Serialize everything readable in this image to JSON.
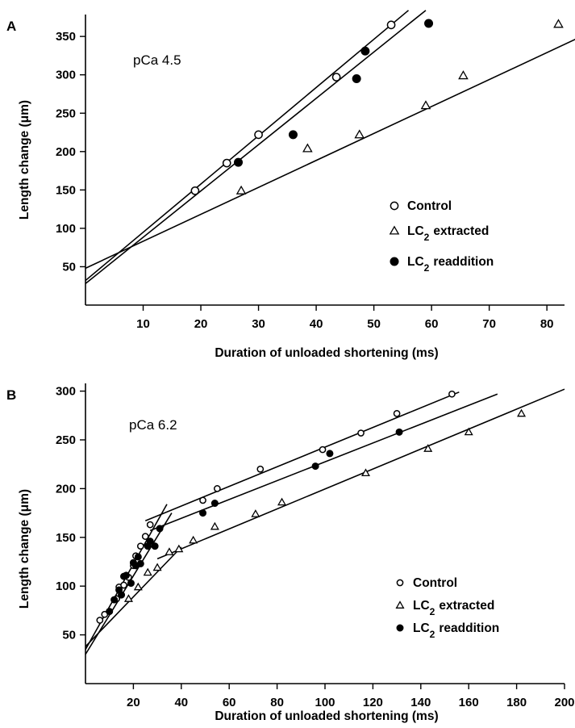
{
  "chart_data": [
    {
      "panel": "A",
      "type": "scatter",
      "annotation": "pCa 4.5",
      "xlabel": "Duration of unloaded shortening (ms)",
      "ylabel": "Length change (μm)",
      "xlim": [
        0,
        86
      ],
      "ylim": [
        0,
        375
      ],
      "xticks": [
        10,
        20,
        30,
        40,
        50,
        60,
        70,
        80
      ],
      "yticks": [
        50,
        100,
        150,
        200,
        250,
        300,
        350
      ],
      "legend_position": "right",
      "series": [
        {
          "name": "Control",
          "marker": "open-circle",
          "points": [
            [
              19,
              149
            ],
            [
              24.5,
              185
            ],
            [
              30,
              222
            ],
            [
              43.5,
              297
            ],
            [
              53,
              365
            ]
          ],
          "fit": {
            "x1": 0,
            "y1": 32,
            "x2": 56,
            "y2": 384
          }
        },
        {
          "name": "LC2 extracted",
          "marker": "open-triangle",
          "points": [
            [
              27,
              149
            ],
            [
              38.5,
              204
            ],
            [
              47.5,
              222
            ],
            [
              59,
              260
            ],
            [
              65.5,
              299
            ],
            [
              82,
              366
            ]
          ],
          "fit": {
            "x1": 0,
            "y1": 48,
            "x2": 86,
            "y2": 350
          }
        },
        {
          "name": "LC2 readdition",
          "marker": "filled-circle",
          "points": [
            [
              26.5,
              186
            ],
            [
              36,
              222
            ],
            [
              47,
              295
            ],
            [
              48.5,
              331
            ],
            [
              59.5,
              367
            ]
          ],
          "fit": {
            "x1": 0,
            "y1": 28,
            "x2": 59,
            "y2": 384
          }
        }
      ]
    },
    {
      "panel": "B",
      "type": "scatter",
      "annotation": "pCa 6.2",
      "xlabel": "Duration of unloaded shortening (ms)",
      "ylabel": "Length change (μm)",
      "xlim": [
        0,
        200
      ],
      "ylim": [
        0,
        300
      ],
      "xticks": [
        20,
        40,
        60,
        80,
        100,
        120,
        140,
        160,
        180,
        200
      ],
      "yticks": [
        50,
        100,
        150,
        200,
        250,
        300
      ],
      "legend_position": "right",
      "series": [
        {
          "name": "Control",
          "marker": "open-circle-small",
          "points": [
            [
              6,
              65
            ],
            [
              8,
              71
            ],
            [
              13,
              87
            ],
            [
              14,
              99
            ],
            [
              16,
              101
            ],
            [
              18,
              109
            ],
            [
              20,
              121
            ],
            [
              21,
              131
            ],
            [
              23,
              141
            ],
            [
              25,
              151
            ],
            [
              27,
              163
            ],
            [
              49,
              188
            ],
            [
              55,
              200
            ],
            [
              73,
              220
            ],
            [
              99,
              240
            ],
            [
              115,
              257
            ],
            [
              130,
              277
            ],
            [
              153,
              297
            ]
          ],
          "fits": [
            {
              "x1": 0,
              "y1": 35,
              "x2": 34,
              "y2": 184
            },
            {
              "x1": 25,
              "y1": 167,
              "x2": 156,
              "y2": 299
            }
          ]
        },
        {
          "name": "LC2 extracted",
          "marker": "open-triangle-small",
          "points": [
            [
              18,
              87
            ],
            [
              22,
              99
            ],
            [
              26,
              114
            ],
            [
              30,
              119
            ],
            [
              35,
              135
            ],
            [
              39,
              138
            ],
            [
              45,
              147
            ],
            [
              54,
              161
            ],
            [
              71,
              174
            ],
            [
              82,
              186
            ],
            [
              117,
              216
            ],
            [
              143,
              241
            ],
            [
              160,
              258
            ],
            [
              182,
              277
            ]
          ],
          "fits": [
            {
              "x1": 0,
              "y1": 38,
              "x2": 40,
              "y2": 140
            },
            {
              "x1": 30,
              "y1": 128,
              "x2": 200,
              "y2": 302
            }
          ]
        },
        {
          "name": "LC2 readdition",
          "marker": "filled-circle-small",
          "points": [
            [
              10,
              74
            ],
            [
              12,
              86
            ],
            [
              14,
              96
            ],
            [
              15,
              91
            ],
            [
              16,
              110
            ],
            [
              17,
              111
            ],
            [
              19,
              103
            ],
            [
              20,
              124
            ],
            [
              21,
              121
            ],
            [
              22,
              130
            ],
            [
              23,
              123
            ],
            [
              26,
              141
            ],
            [
              27,
              146
            ],
            [
              29,
              141
            ],
            [
              31,
              159
            ],
            [
              49,
              175
            ],
            [
              54,
              185
            ],
            [
              96,
              223
            ],
            [
              102,
              236
            ],
            [
              131,
              258
            ]
          ],
          "fits": [
            {
              "x1": 0,
              "y1": 30,
              "x2": 36,
              "y2": 175
            },
            {
              "x1": 27,
              "y1": 157,
              "x2": 172,
              "y2": 297
            }
          ]
        }
      ]
    }
  ],
  "legend_labels": {
    "control": "Control",
    "extracted_lc": "LC",
    "extracted_sub": "2",
    "extracted_rest": "extracted",
    "readdition_lc": "LC",
    "readdition_sub": "2",
    "readdition_rest": "readdition"
  }
}
